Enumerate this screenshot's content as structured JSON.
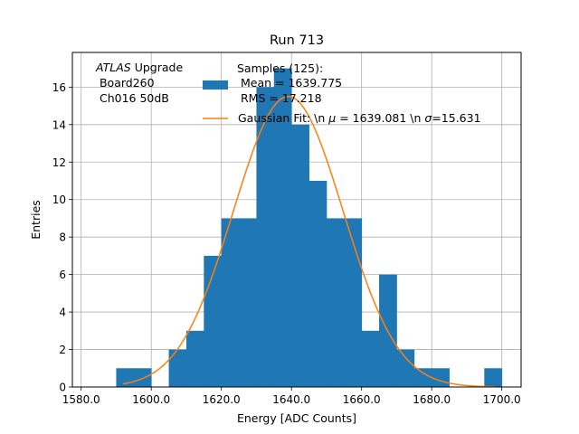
{
  "chart_data": {
    "type": "bar",
    "title": "Run 713",
    "xlabel": "Energy [ADC Counts]",
    "ylabel": "Entries",
    "xlim": [
      1577.5,
      1705.5
    ],
    "ylim": [
      0,
      17.85
    ],
    "xticks": [
      1580,
      1600,
      1620,
      1640,
      1660,
      1680,
      1700
    ],
    "xtick_labels": [
      "1580.0",
      "1600.0",
      "1620.0",
      "1640.0",
      "1660.0",
      "1680.0",
      "1700.0"
    ],
    "yticks": [
      0,
      2,
      4,
      6,
      8,
      10,
      12,
      14,
      16
    ],
    "ytick_labels": [
      "0",
      "2",
      "4",
      "6",
      "8",
      "10",
      "12",
      "14",
      "16"
    ],
    "grid": true,
    "bar_color": "#1f77b4",
    "fit_color": "#ff7f0e",
    "histogram": {
      "bin_edges": [
        1590,
        1595,
        1600,
        1605,
        1610,
        1615,
        1620,
        1625,
        1630,
        1635,
        1640,
        1645,
        1650,
        1655,
        1660,
        1665,
        1670,
        1675,
        1680,
        1685,
        1690,
        1695,
        1700
      ],
      "counts": [
        1,
        1,
        0,
        2,
        3,
        7,
        9,
        9,
        16,
        17,
        14,
        11,
        9,
        9,
        3,
        6,
        2,
        1,
        1,
        0,
        0,
        1
      ]
    },
    "fit": {
      "mu": 1639.081,
      "sigma": 15.631,
      "amplitude": 15.5,
      "x_range": [
        1592,
        1698
      ]
    },
    "annotation_lines": [
      "ATLAS Upgrade",
      " Board260",
      " Ch016 50dB"
    ],
    "annotation_italic": "ATLAS",
    "annotation_rest": " Upgrade",
    "legend": {
      "placement": "top-right",
      "samples_lines": [
        "Samples (125):",
        " Mean = 1639.775",
        " RMS = 17.218"
      ],
      "fit_prefix": "Gaussian Fit: \\n ",
      "fit_mu_symbol": "μ",
      "fit_mid": " = 1639.081 \\n ",
      "fit_sigma_symbol": "σ",
      "fit_suffix": "=15.631"
    }
  }
}
